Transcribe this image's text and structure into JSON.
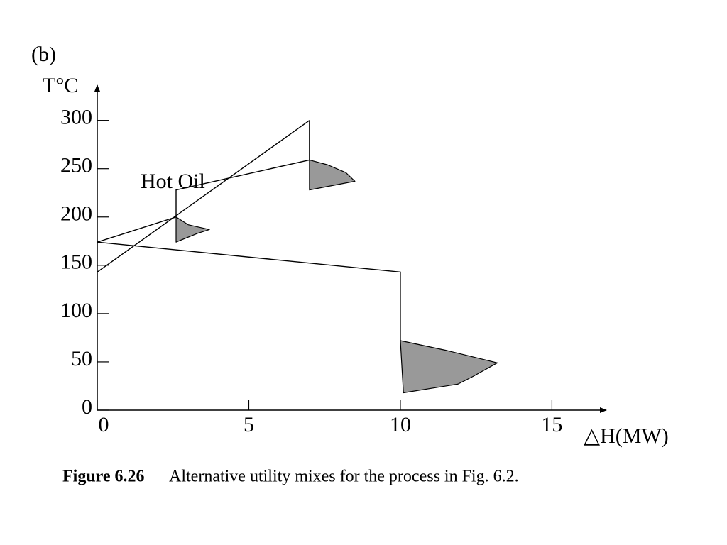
{
  "chart_data": {
    "type": "line",
    "panel_label": "(b)",
    "y_label": "T°C",
    "x_label": "△H(MW)",
    "annotation": "Hot Oil",
    "caption_label": "Figure 6.26",
    "caption": "Alternative utility mixes for the process in Fig. 6.2.",
    "xlim": [
      0,
      16.7
    ],
    "ylim": [
      0,
      335
    ],
    "xticks": [
      0,
      5,
      10,
      15
    ],
    "yticks": [
      0,
      50,
      100,
      150,
      200,
      250,
      300
    ],
    "series": [
      {
        "color": "#000000",
        "x": [
          0,
          7
        ],
        "y": [
          143,
          300
        ]
      },
      {
        "color": "#000000",
        "x": [
          7,
          7,
          2.6,
          2.6,
          0,
          10,
          10
        ],
        "y": [
          300,
          259,
          228,
          200,
          174,
          143,
          72
        ]
      }
    ],
    "pockets": [
      {
        "color": "#999999",
        "x": [
          7,
          7.6,
          8.2,
          8.5,
          7,
          7
        ],
        "y": [
          259,
          254,
          246,
          237,
          228,
          259
        ]
      },
      {
        "color": "#999999",
        "x": [
          2.6,
          3.0,
          3.7,
          3.3,
          2.6,
          2.6
        ],
        "y": [
          200,
          192,
          187,
          183,
          174,
          200
        ]
      },
      {
        "color": "#999999",
        "x": [
          10,
          11.5,
          13.2,
          12.4,
          11.9,
          10.1,
          10
        ],
        "y": [
          72,
          62,
          49,
          35,
          27,
          18,
          72
        ]
      }
    ]
  }
}
